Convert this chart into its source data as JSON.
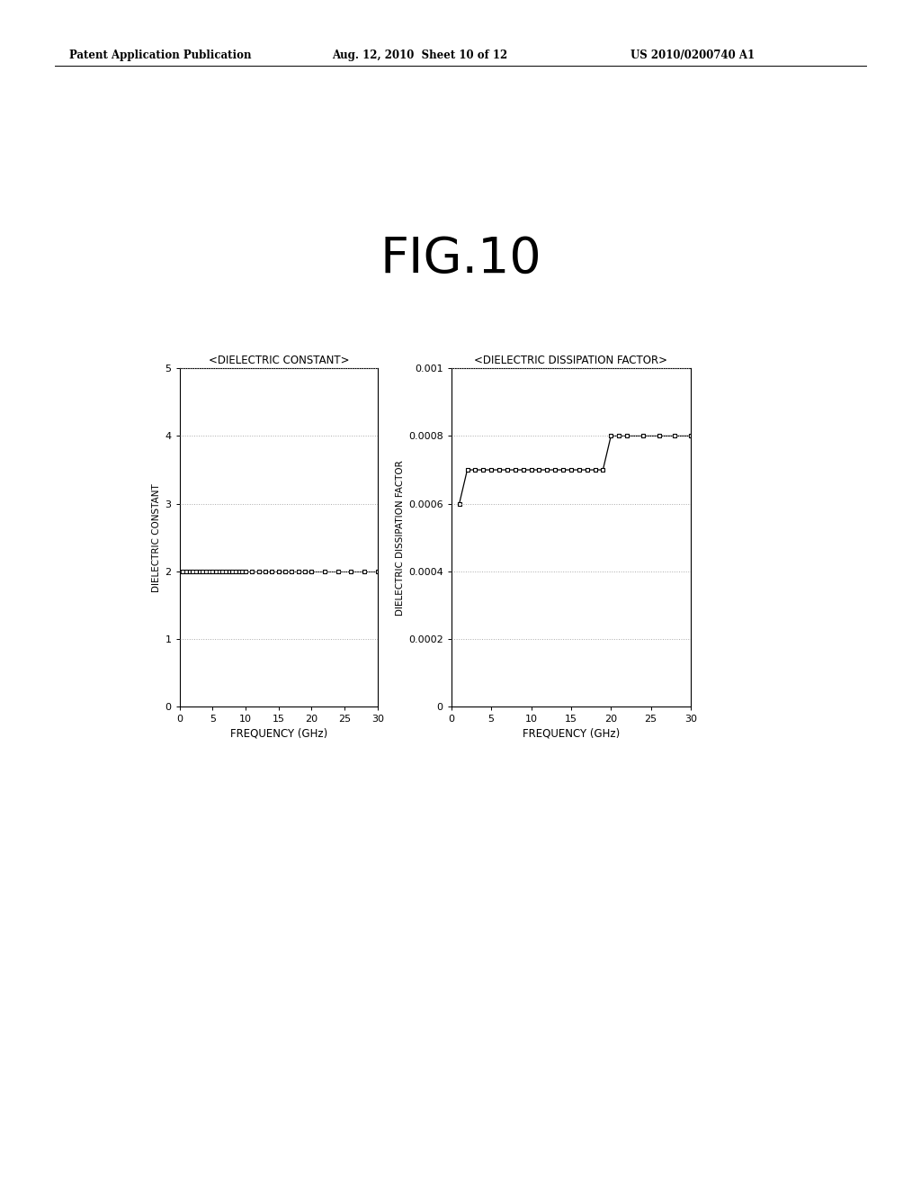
{
  "fig_title": "FIG.10",
  "header_left": "Patent Application Publication",
  "header_mid": "Aug. 12, 2010  Sheet 10 of 12",
  "header_right": "US 2010/0200740 A1",
  "left_title": "<DIELECTRIC CONSTANT>",
  "left_ylabel": "DIELECTRIC CONSTANT",
  "left_xlabel": "FREQUENCY (GHz)",
  "left_xlim": [
    0,
    30
  ],
  "left_ylim": [
    0,
    5
  ],
  "left_yticks": [
    0,
    1,
    2,
    3,
    4,
    5
  ],
  "left_xticks": [
    0,
    5,
    10,
    15,
    20,
    25,
    30
  ],
  "left_data_x": [
    0.5,
    1.0,
    1.5,
    2.0,
    2.5,
    3.0,
    3.5,
    4.0,
    4.5,
    5.0,
    5.5,
    6.0,
    6.5,
    7.0,
    7.5,
    8.0,
    8.5,
    9.0,
    9.5,
    10.0,
    11.0,
    12.0,
    13.0,
    14.0,
    15.0,
    16.0,
    17.0,
    18.0,
    19.0,
    20.0,
    22.0,
    24.0,
    26.0,
    28.0,
    30.0
  ],
  "left_data_y": [
    2.0,
    2.0,
    2.0,
    2.0,
    2.0,
    2.0,
    2.0,
    2.0,
    2.0,
    2.0,
    2.0,
    2.0,
    2.0,
    2.0,
    2.0,
    2.0,
    2.0,
    2.0,
    2.0,
    2.0,
    2.0,
    2.0,
    2.0,
    2.0,
    2.0,
    2.0,
    2.0,
    2.0,
    2.0,
    2.0,
    2.0,
    2.0,
    2.0,
    2.0,
    2.0
  ],
  "right_title": "<DIELECTRIC DISSIPATION FACTOR>",
  "right_ylabel": "DIELECTRIC DISSIPATION FACTOR",
  "right_xlabel": "FREQUENCY (GHz)",
  "right_xlim": [
    0,
    30
  ],
  "right_ylim": [
    0,
    0.001
  ],
  "right_yticks": [
    0,
    0.0002,
    0.0004,
    0.0006,
    0.0008,
    0.001
  ],
  "right_xticks": [
    0,
    5,
    10,
    15,
    20,
    25,
    30
  ],
  "right_data_x": [
    1.0,
    2.0,
    3.0,
    4.0,
    5.0,
    6.0,
    7.0,
    8.0,
    9.0,
    10.0,
    11.0,
    12.0,
    13.0,
    14.0,
    15.0,
    16.0,
    17.0,
    18.0,
    19.0,
    20.0,
    21.0,
    22.0,
    24.0,
    26.0,
    28.0,
    30.0
  ],
  "right_data_y": [
    0.0006,
    0.0007,
    0.0007,
    0.0007,
    0.0007,
    0.0007,
    0.0007,
    0.0007,
    0.0007,
    0.0007,
    0.0007,
    0.0007,
    0.0007,
    0.0007,
    0.0007,
    0.0007,
    0.0007,
    0.0007,
    0.0007,
    0.0008,
    0.0008,
    0.0008,
    0.0008,
    0.0008,
    0.0008,
    0.0008
  ],
  "line_color": "black",
  "marker_style": "s",
  "marker_size": 3.5,
  "marker_facecolor": "white",
  "marker_edgecolor": "black",
  "grid_color": "#aaaaaa",
  "grid_linestyle": ":",
  "grid_linewidth": 0.7,
  "background_color": "white",
  "font_color": "black"
}
